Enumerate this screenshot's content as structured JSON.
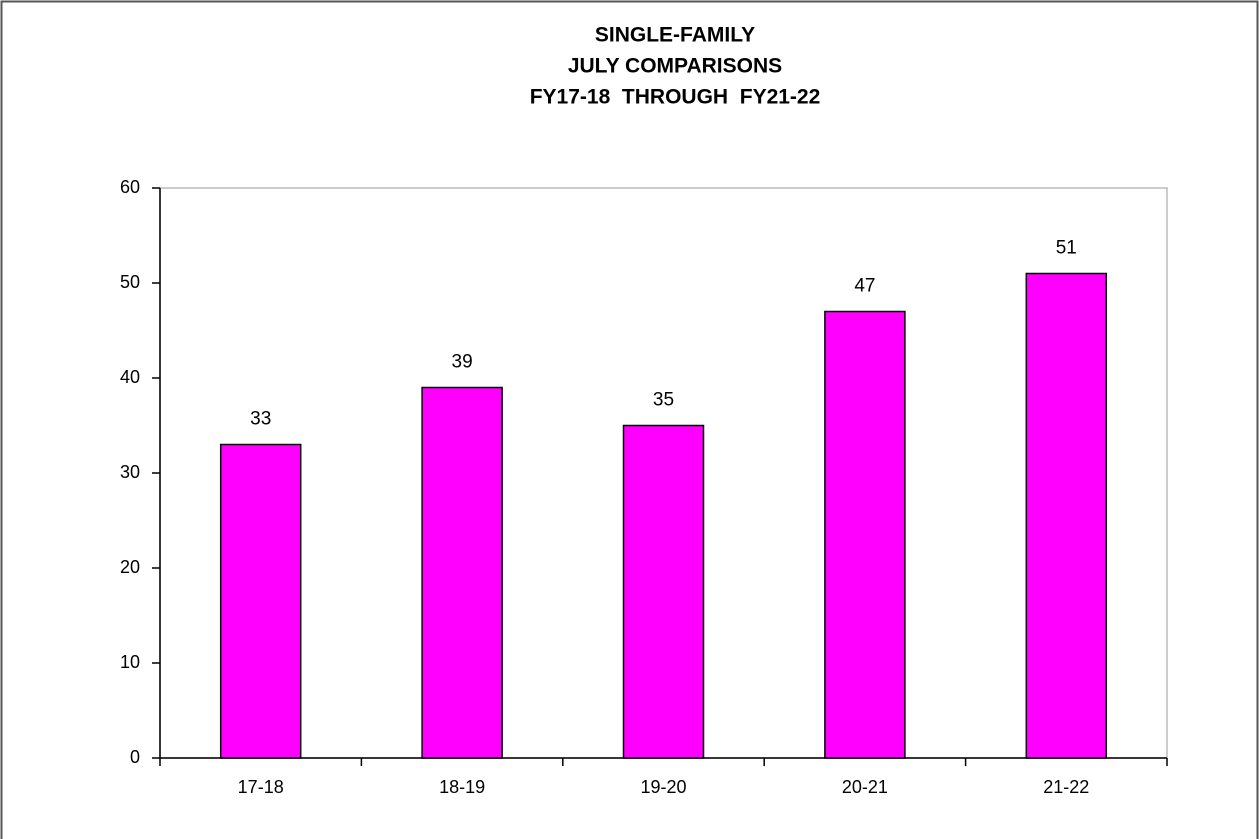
{
  "chart_data": {
    "type": "bar",
    "title": [
      "SINGLE-FAMILY",
      "JULY COMPARISONS",
      "FY17-18  THROUGH  FY21-22"
    ],
    "categories": [
      "17-18",
      "18-19",
      "19-20",
      "20-21",
      "21-22"
    ],
    "values": [
      33,
      39,
      35,
      47,
      51
    ],
    "color": "#ff00ff",
    "ylim": [
      0,
      60
    ],
    "yticks": [
      0,
      10,
      20,
      30,
      40,
      50,
      60
    ],
    "grid": false
  }
}
